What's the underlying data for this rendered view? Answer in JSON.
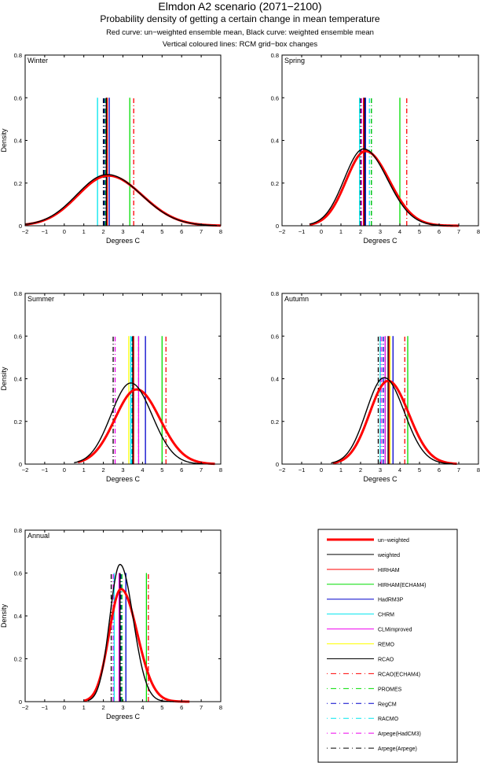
{
  "titles": {
    "main": "Elmdon A2 scenario (2071−2100)",
    "sub": "Probability density of getting a certain change in mean temperature",
    "line3": "Red curve: un−weighted ensemble mean, Black curve: weighted ensemble mean",
    "line4": "Vertical coloured lines: RCM grid−box changes"
  },
  "chart_data": [
    {
      "type": "line",
      "panel": "Winter",
      "xlabel": "Degrees C",
      "ylabel": "Density",
      "xlim": [
        -2,
        8
      ],
      "ylim": [
        0,
        0.8
      ],
      "xticks": [
        -2,
        -1,
        0,
        1,
        2,
        3,
        4,
        5,
        6,
        7,
        8
      ],
      "yticks": [
        0,
        0.2,
        0.4,
        0.6,
        0.8
      ],
      "unweighted": {
        "mean": 2.25,
        "sd": 1.65,
        "peak": 0.235,
        "range": [
          -2,
          8
        ],
        "skew": 0.15
      },
      "weighted": {
        "mean": 2.2,
        "sd": 1.65,
        "peak": 0.24,
        "range": [
          -2,
          7.8
        ],
        "skew": 0.15
      },
      "rcm_lines": {
        "HIRHAM": 2.2,
        "HIRHAM(ECHAM4)": 3.35,
        "HadRM3P": 2.3,
        "CHRM": 1.7,
        "CLMimproved": 2.15,
        "REMO": 2.2,
        "RCAO": 2.15,
        "RCAO(ECHAM4)": 3.55,
        "PROMES": 2.1,
        "RegCM": 2.05,
        "RACMO": 2.05,
        "Arpege(HadCM3)": 2.1,
        "Arpege(Arpege)": 2.0
      }
    },
    {
      "type": "line",
      "panel": "Spring",
      "xlabel": "Degrees C",
      "ylabel": "",
      "xlim": [
        -2,
        8
      ],
      "ylim": [
        0,
        0.8
      ],
      "xticks": [
        -2,
        -1,
        0,
        1,
        2,
        3,
        4,
        5,
        6,
        7,
        8
      ],
      "yticks": [
        0,
        0.2,
        0.4,
        0.6,
        0.8
      ],
      "unweighted": {
        "mean": 2.25,
        "sd": 1.1,
        "peak": 0.35,
        "range": [
          -0.6,
          7
        ],
        "skew": 0.3
      },
      "weighted": {
        "mean": 2.15,
        "sd": 1.1,
        "peak": 0.36,
        "range": [
          -0.6,
          6.7
        ],
        "skew": 0.3
      },
      "rcm_lines": {
        "HIRHAM": 2.15,
        "HIRHAM(ECHAM4)": 4.0,
        "HadRM3P": 2.25,
        "CHRM": 1.95,
        "CLMimproved": 2.15,
        "REMO": 2.2,
        "RCAO": 2.2,
        "RCAO(ECHAM4)": 4.35,
        "PROMES": 2.55,
        "RegCM": 2.55,
        "RACMO": 2.45,
        "Arpege(HadCM3)": 2.05,
        "Arpege(Arpege)": 2.0
      }
    },
    {
      "type": "line",
      "panel": "Summer",
      "xlabel": "Degrees C",
      "ylabel": "Density",
      "xlim": [
        -2,
        8
      ],
      "ylim": [
        0,
        0.8
      ],
      "xticks": [
        -2,
        -1,
        0,
        1,
        2,
        3,
        4,
        5,
        6,
        7,
        8
      ],
      "yticks": [
        0,
        0.2,
        0.4,
        0.6,
        0.8
      ],
      "unweighted": {
        "mean": 3.7,
        "sd": 1.15,
        "peak": 0.35,
        "range": [
          0.7,
          7.7
        ],
        "skew": 0.1
      },
      "weighted": {
        "mean": 3.4,
        "sd": 1.05,
        "peak": 0.38,
        "range": [
          0.5,
          7.1
        ],
        "skew": 0.1
      },
      "rcm_lines": {
        "HIRHAM": 3.55,
        "HIRHAM(ECHAM4)": 5.0,
        "HadRM3P": 4.15,
        "CHRM": 3.4,
        "CLMimproved": 3.8,
        "REMO": 3.3,
        "RCAO": 3.5,
        "RCAO(ECHAM4)": 5.2,
        "PROMES": 3.8,
        "RegCM": 3.5,
        "RACMO": 3.45,
        "Arpege(HadCM3)": 2.6,
        "Arpege(Arpege)": 2.5
      }
    },
    {
      "type": "line",
      "panel": "Autumn",
      "xlabel": "Degrees C",
      "ylabel": "",
      "xlim": [
        -2,
        8
      ],
      "ylim": [
        0,
        0.8
      ],
      "xticks": [
        -2,
        -1,
        0,
        1,
        2,
        3,
        4,
        5,
        6,
        7,
        8
      ],
      "yticks": [
        0,
        0.2,
        0.4,
        0.6,
        0.8
      ],
      "unweighted": {
        "mean": 3.4,
        "sd": 1.0,
        "peak": 0.39,
        "range": [
          0.6,
          6.9
        ],
        "skew": 0.15
      },
      "weighted": {
        "mean": 3.2,
        "sd": 0.97,
        "peak": 0.405,
        "range": [
          0.5,
          6.7
        ],
        "skew": 0.15
      },
      "rcm_lines": {
        "HIRHAM": 3.45,
        "HIRHAM(ECHAM4)": 4.4,
        "HadRM3P": 3.65,
        "CHRM": 3.0,
        "CLMimproved": 3.25,
        "REMO": 3.5,
        "RCAO": 3.4,
        "RCAO(ECHAM4)": 4.25,
        "PROMES": 3.25,
        "RegCM": 3.15,
        "RACMO": 3.15,
        "Arpege(HadCM3)": 3.05,
        "Arpege(Arpege)": 2.9
      }
    },
    {
      "type": "line",
      "panel": "Annual",
      "xlabel": "Degrees C",
      "ylabel": "Density",
      "xlim": [
        -2,
        8
      ],
      "ylim": [
        0,
        0.8
      ],
      "xticks": [
        -2,
        -1,
        0,
        1,
        2,
        3,
        4,
        5,
        6,
        7,
        8
      ],
      "yticks": [
        0,
        0.2,
        0.4,
        0.6,
        0.8
      ],
      "unweighted": {
        "mean": 2.9,
        "sd": 0.72,
        "peak": 0.525,
        "range": [
          1.0,
          6.4
        ],
        "skew": 0.45
      },
      "weighted": {
        "mean": 2.85,
        "sd": 0.6,
        "peak": 0.64,
        "range": [
          1.2,
          5.6
        ],
        "skew": 0.35
      },
      "rcm_lines": {
        "HIRHAM": 2.85,
        "HIRHAM(ECHAM4)": 4.2,
        "HadRM3P": 3.15,
        "CHRM": 2.55,
        "CLMimproved": 2.8,
        "REMO": 2.85,
        "RCAO": 2.85,
        "RCAO(ECHAM4)": 4.3,
        "PROMES": 2.95,
        "RegCM": 2.9,
        "RACMO": 2.85,
        "Arpege(HadCM3)": 2.5,
        "Arpege(Arpege)": 2.4
      }
    }
  ],
  "legend": {
    "entries": [
      {
        "label": "un−weighted",
        "color": "#ff0000",
        "style": "thick"
      },
      {
        "label": "weighted",
        "color": "#000000",
        "style": "solid"
      },
      {
        "label": "HIRHAM",
        "color": "#ff0000",
        "style": "solid"
      },
      {
        "label": "HIRHAM(ECHAM4)",
        "color": "#00dd00",
        "style": "solid"
      },
      {
        "label": "HadRM3P",
        "color": "#0000cc",
        "style": "solid"
      },
      {
        "label": "CHRM",
        "color": "#00e5ee",
        "style": "solid"
      },
      {
        "label": "CLMimproved",
        "color": "#ee00ee",
        "style": "solid"
      },
      {
        "label": "REMO",
        "color": "#ffff00",
        "style": "solid"
      },
      {
        "label": "RCAO",
        "color": "#000000",
        "style": "solid"
      },
      {
        "label": "RCAO(ECHAM4)",
        "color": "#ff0000",
        "style": "dashdot"
      },
      {
        "label": "PROMES",
        "color": "#00dd00",
        "style": "dashdot"
      },
      {
        "label": "RegCM",
        "color": "#0000cc",
        "style": "dashdot"
      },
      {
        "label": "RACMO",
        "color": "#00e5ee",
        "style": "dashdot"
      },
      {
        "label": "Arpege(HadCM3)",
        "color": "#ee00ee",
        "style": "dashdot"
      },
      {
        "label": "Arpege(Arpege)",
        "color": "#000000",
        "style": "dashdot"
      }
    ]
  }
}
